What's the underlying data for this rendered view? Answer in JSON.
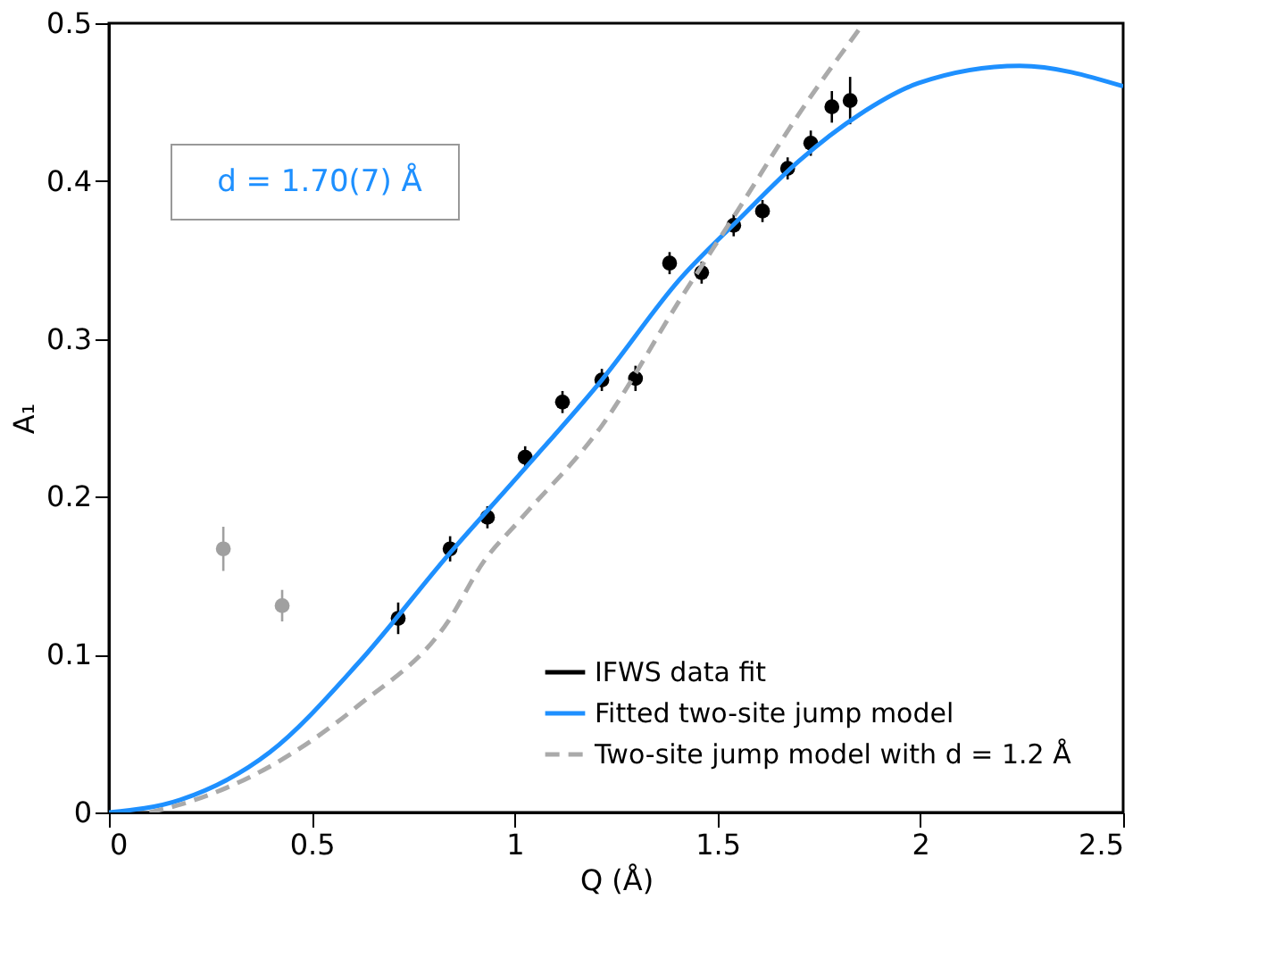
{
  "chart_data": {
    "type": "scatter",
    "xlabel": "Q (Å)",
    "ylabel": "A₁",
    "annotations": [
      "d = 1.70(7) Å"
    ],
    "xlim": [
      0,
      2.5
    ],
    "xticks": [
      0,
      0.5,
      1,
      1.5,
      2,
      2.5
    ],
    "ylim": [
      0,
      0.5
    ],
    "yticks": [
      0,
      0.1,
      0.2,
      0.3,
      0.4,
      0.5
    ],
    "grid": false,
    "legend": "bottom right",
    "series": [
      {
        "name": "IFWS data fit",
        "type": "scatter",
        "marker": "circle",
        "color": "#000000",
        "x": [
          0.713,
          0.841,
          0.933,
          1.026,
          1.118,
          1.215,
          1.298,
          1.382,
          1.461,
          1.54,
          1.611,
          1.673,
          1.73,
          1.782,
          1.827
        ],
        "values": [
          0.123,
          0.167,
          0.187,
          0.225,
          0.26,
          0.274,
          0.275,
          0.348,
          0.342,
          0.372,
          0.381,
          0.408,
          0.424,
          0.447,
          0.451
        ],
        "errors": [
          0.01,
          0.008,
          0.007,
          0.007,
          0.007,
          0.007,
          0.008,
          0.007,
          0.007,
          0.007,
          0.007,
          0.007,
          0.008,
          0.01,
          0.015
        ]
      },
      {
        "type": "scatter",
        "marker": "circle",
        "color": "#a0a0a0",
        "x": [
          0.282,
          0.427
        ],
        "values": [
          0.167,
          0.131
        ],
        "errors": [
          0.014,
          0.01
        ]
      },
      {
        "name": "Fitted two-site jump model",
        "type": "line",
        "line_style": "solid",
        "color": "#1e90ff",
        "x": [
          0,
          0.176,
          0.396,
          0.616,
          0.836,
          1.012,
          1.215,
          1.408,
          1.554,
          1.702,
          1.849,
          1.995,
          2.245,
          2.5
        ],
        "values": [
          0,
          0.008,
          0.038,
          0.095,
          0.163,
          0.214,
          0.274,
          0.338,
          0.376,
          0.413,
          0.442,
          0.462,
          0.473,
          0.46
        ]
      },
      {
        "name": "Two-site jump model with d = 1.2  Å",
        "type": "line",
        "line_style": "dashed",
        "color": "#aaaaaa",
        "x": [
          0.1,
          0.176,
          0.396,
          0.616,
          0.836,
          0.924,
          1.012,
          1.215,
          1.408,
          1.554,
          1.702,
          1.849
        ],
        "values": [
          0,
          0.005,
          0.029,
          0.068,
          0.121,
          0.159,
          0.185,
          0.245,
          0.325,
          0.383,
          0.443,
          0.496
        ]
      }
    ]
  }
}
